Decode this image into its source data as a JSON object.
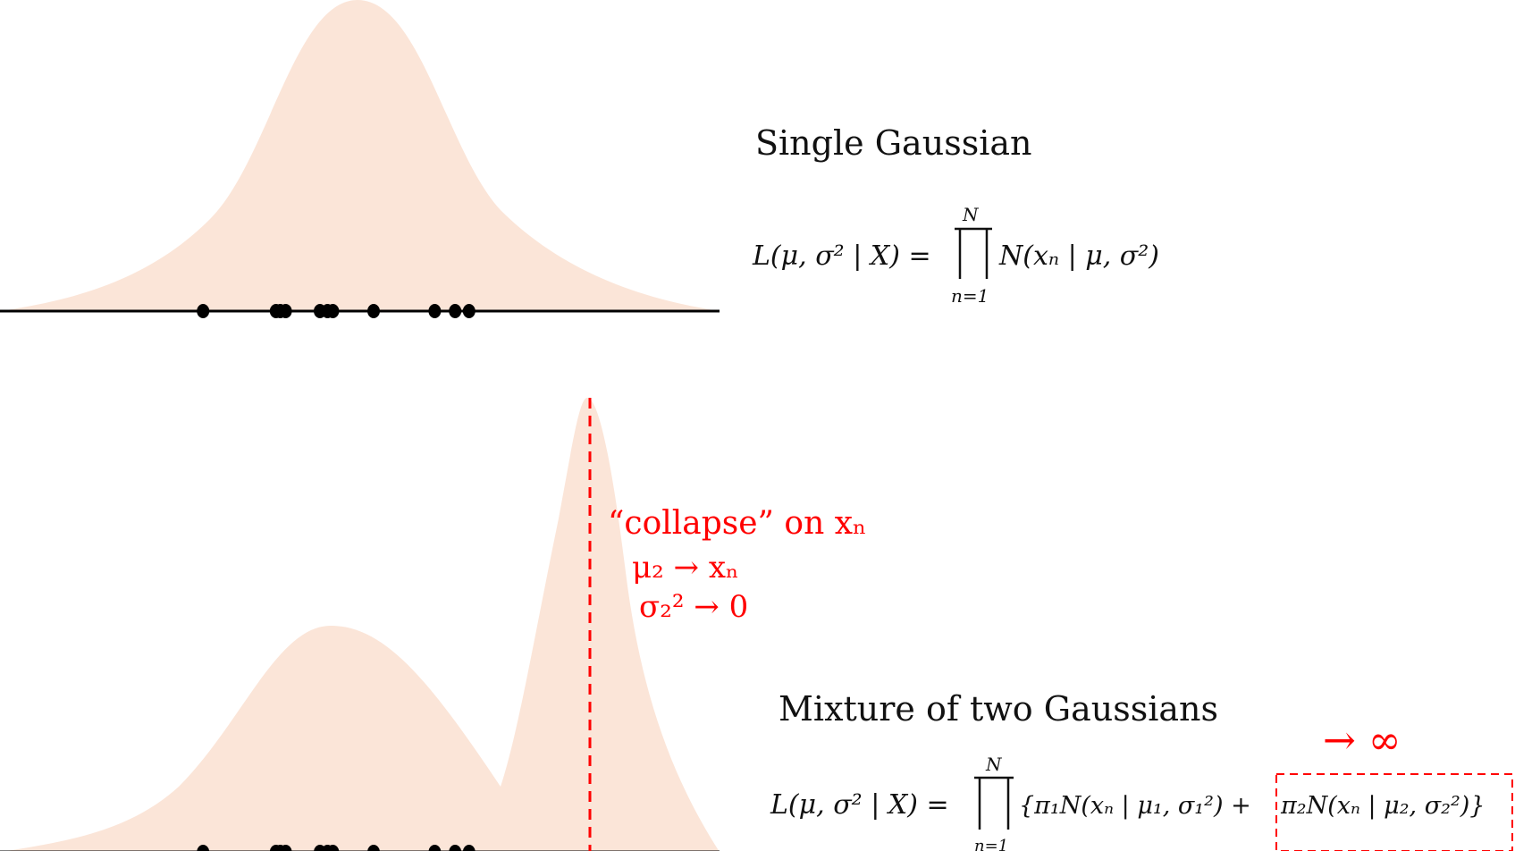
{
  "colors": {
    "density_fill": "#fbe5d8",
    "axis": "#000000",
    "point": "#000000",
    "accent": "#ff0000"
  },
  "top_panel": {
    "title": "Single Gaussian",
    "formula": {
      "lhs": "L(μ, σ² | X) =",
      "prod_upper": "N",
      "prod_lower": "n=1",
      "rhs": "N(xₙ | μ, σ²)"
    },
    "points": [
      -7.2,
      -3.8,
      -3.6,
      -3.35,
      -1.75,
      -1.4,
      -1.15,
      0.75,
      3.6,
      4.55,
      5.2
    ]
  },
  "bottom_panel": {
    "title": "Mixture of two Gaussians",
    "annotation": {
      "collapse_text": "“collapse” on xₙ",
      "mu_line": "μ₂ → xₙ",
      "sigma_line": "σ₂² → 0"
    },
    "infinity_label": "→ ∞",
    "formula": {
      "lhs": "L(μ, σ² | X) =",
      "prod_upper": "N",
      "prod_lower": "n=1",
      "term1": "{π₁N(xₙ | μ₁, σ₁²) +",
      "term2": "π₂N(xₙ | μ₂, σ₂²)}"
    },
    "points": [
      -7.2,
      -3.8,
      -3.6,
      -3.35,
      -1.75,
      -1.4,
      -1.15,
      0.75,
      3.6,
      4.55,
      5.2
    ]
  }
}
